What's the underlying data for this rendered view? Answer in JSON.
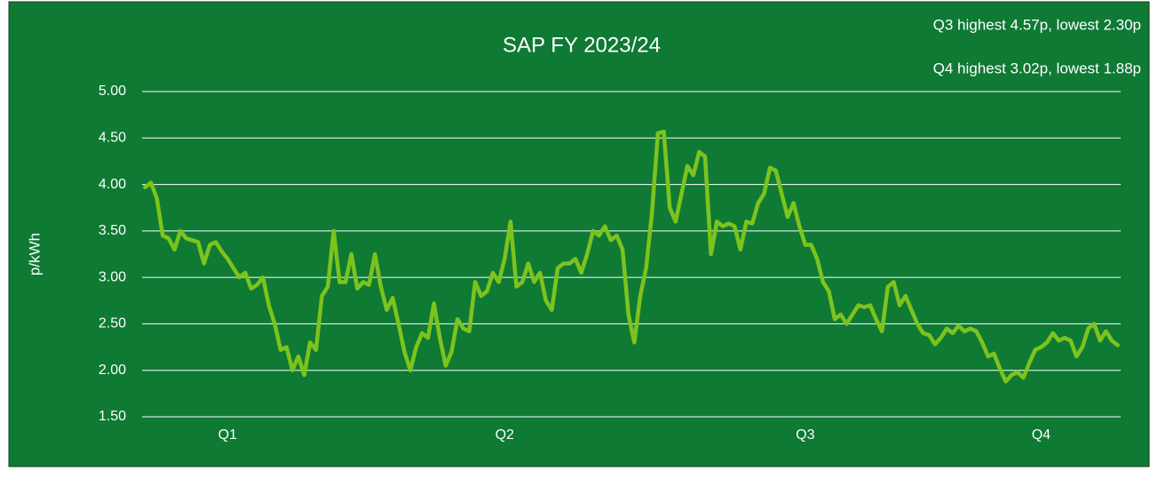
{
  "chart_data": {
    "type": "line",
    "title": "SAP FY 2023/24",
    "annotations": [
      "Q3 highest 4.57p, lowest 2.30p",
      "Q4 highest 3.02p, lowest 1.88p"
    ],
    "y_label": "p/kWh",
    "categories": [
      null,
      null,
      null,
      null,
      null,
      null,
      null,
      null,
      null,
      null,
      null,
      null,
      null,
      null,
      "Q1",
      null,
      null,
      null,
      null,
      null,
      null,
      null,
      null,
      null,
      null,
      null,
      null,
      null,
      null,
      null,
      null,
      null,
      null,
      null,
      null,
      null,
      null,
      null,
      null,
      null,
      null,
      null,
      null,
      null,
      null,
      null,
      null,
      null,
      null,
      null,
      null,
      null,
      null,
      null,
      null,
      null,
      null,
      null,
      null,
      null,
      null,
      "Q2",
      null,
      null,
      null,
      null,
      null,
      null,
      null,
      null,
      null,
      null,
      null,
      null,
      null,
      null,
      null,
      null,
      null,
      null,
      null,
      null,
      null,
      null,
      null,
      null,
      null,
      null,
      null,
      null,
      null,
      null,
      null,
      null,
      null,
      null,
      null,
      null,
      null,
      null,
      null,
      null,
      null,
      null,
      null,
      null,
      null,
      null,
      null,
      null,
      null,
      null,
      "Q3",
      null,
      null,
      null,
      null,
      null,
      null,
      null,
      null,
      null,
      null,
      null,
      null,
      null,
      null,
      null,
      null,
      null,
      null,
      null,
      null,
      null,
      null,
      null,
      null,
      null,
      null,
      null,
      null,
      null,
      null,
      null,
      null,
      null,
      null,
      null,
      null,
      null,
      null,
      null,
      "Q4",
      null,
      null,
      null,
      null,
      null,
      null,
      null,
      null,
      null,
      null,
      null,
      null,
      null
    ],
    "values": [
      3.97,
      4.02,
      3.85,
      3.45,
      3.42,
      3.3,
      3.5,
      3.42,
      3.4,
      3.38,
      3.15,
      3.35,
      3.38,
      3.28,
      3.2,
      3.1,
      3.0,
      3.05,
      2.88,
      2.92,
      3.0,
      2.7,
      2.5,
      2.22,
      2.25,
      2.0,
      2.15,
      1.95,
      2.3,
      2.22,
      2.8,
      2.9,
      3.5,
      2.95,
      2.95,
      3.25,
      2.88,
      2.95,
      2.92,
      3.25,
      2.9,
      2.65,
      2.78,
      2.5,
      2.2,
      2.0,
      2.25,
      2.4,
      2.35,
      2.72,
      2.35,
      2.05,
      2.2,
      2.55,
      2.45,
      2.42,
      2.95,
      2.8,
      2.85,
      3.05,
      2.95,
      3.2,
      3.6,
      2.9,
      2.95,
      3.15,
      2.95,
      3.05,
      2.75,
      2.65,
      3.1,
      3.15,
      3.15,
      3.2,
      3.05,
      3.25,
      3.5,
      3.45,
      3.55,
      3.4,
      3.45,
      3.3,
      2.6,
      2.3,
      2.8,
      3.1,
      3.7,
      4.55,
      4.57,
      3.75,
      3.6,
      3.9,
      4.2,
      4.1,
      4.35,
      4.3,
      3.25,
      3.6,
      3.55,
      3.58,
      3.55,
      3.3,
      3.6,
      3.58,
      3.8,
      3.9,
      4.18,
      4.15,
      3.9,
      3.65,
      3.8,
      3.55,
      3.35,
      3.35,
      3.2,
      2.95,
      2.85,
      2.55,
      2.6,
      2.5,
      2.6,
      2.7,
      2.68,
      2.7,
      2.55,
      2.42,
      2.9,
      2.95,
      2.7,
      2.8,
      2.65,
      2.5,
      2.4,
      2.38,
      2.28,
      2.35,
      2.45,
      2.4,
      2.48,
      2.42,
      2.45,
      2.42,
      2.3,
      2.15,
      2.18,
      2.02,
      1.88,
      1.95,
      1.98,
      1.92,
      2.08,
      2.22,
      2.25,
      2.3,
      2.4,
      2.32,
      2.35,
      2.32,
      2.15,
      2.25,
      2.45,
      2.5,
      2.32,
      2.42,
      2.32,
      2.27
    ],
    "color": "#7dc31e",
    "ylim": [
      1.5,
      5
    ],
    "yticks": [
      {
        "value": 1.5,
        "label": "1.50"
      },
      {
        "value": 2,
        "label": "2.00"
      },
      {
        "value": 2.5,
        "label": "2.50"
      },
      {
        "value": 3,
        "label": "3.00"
      },
      {
        "value": 3.5,
        "label": "3.50"
      },
      {
        "value": 4,
        "label": "4.00"
      },
      {
        "value": 4.5,
        "label": "4.50"
      },
      {
        "value": 5,
        "label": "5.00"
      }
    ],
    "grid": true
  }
}
